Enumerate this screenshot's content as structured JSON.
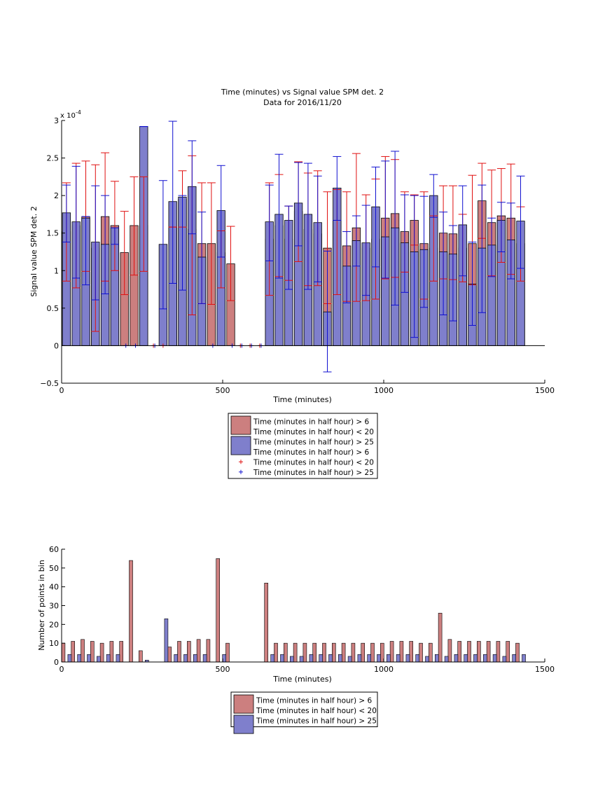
{
  "figure": {
    "title_line1": "Time (minutes) vs Signal value SPM det. 2",
    "title_line2": "Data for 2016/11/20"
  },
  "colors": {
    "red_bar": "#cc7f7f",
    "blue_bar": "#7f7fcc",
    "red_err": "#e01010",
    "blue_err": "#1010d0"
  },
  "chart_data": [
    {
      "type": "bar",
      "xlabel": "Time (minutes)",
      "ylabel": "Signal value SPM det. 2",
      "exponent_label": "x 10",
      "exponent_power": "-4",
      "xlim": [
        0,
        1500
      ],
      "ylim": [
        -0.5,
        3
      ],
      "xticks": [
        "0",
        "500",
        "1000",
        "1500"
      ],
      "yticks": [
        "−0.5",
        "0",
        "0.5",
        "1",
        "1.5",
        "2",
        "2.5",
        "3"
      ],
      "grid": false,
      "legend_position": "below",
      "legend": [
        "Time (minutes in half hour) > 6",
        "Time (minutes in half hour) < 20",
        "Time (minutes in half hour) > 25",
        "Time (minutes in half hour) > 6",
        "Time (minutes in half hour) < 20",
        "Time (minutes in half hour) > 25"
      ],
      "series": [
        {
          "x": [
            15,
            45,
            75,
            105,
            135,
            165,
            195,
            225,
            255,
            285,
            315,
            345,
            375,
            405,
            435,
            465,
            495,
            525,
            555,
            585,
            615,
            645,
            675,
            705,
            735,
            765,
            795,
            825,
            855,
            885,
            915,
            945,
            975,
            1005,
            1035,
            1065,
            1095,
            1125,
            1155,
            1185,
            1215,
            1245,
            1275,
            1305,
            1335,
            1365,
            1395,
            1425
          ],
          "mean": [
            1.52,
            1.6,
            1.72,
            1.3,
            1.72,
            1.6,
            1.24,
            1.6,
            1.6,
            0,
            0,
            1.58,
            1.95,
            1.55,
            1.36,
            1.36,
            1.24,
            1.09,
            0,
            0,
            0,
            1.42,
            1.6,
            1.42,
            1.79,
            1.55,
            1.49,
            1.3,
            1.67,
            1.33,
            1.57,
            1.3,
            1.42,
            1.7,
            1.76,
            1.52,
            1.67,
            1.36,
            1.3,
            1.5,
            1.49,
            1.3,
            1.36,
            1.93,
            1.64,
            1.73,
            1.7,
            1.36
          ],
          "err_low": [
            0.86,
            0.77,
            0.99,
            0.19,
            0.86,
            1.0,
            0.68,
            0.94,
            0.99,
            0,
            0,
            1.58,
            1.58,
            0.41,
            0.56,
            0.55,
            0.77,
            0.6,
            0,
            0,
            0,
            0.67,
            0.92,
            0.87,
            1.12,
            0.8,
            0.8,
            0.56,
            0.68,
            0.59,
            0.59,
            0.6,
            0.62,
            0.89,
            0.91,
            0.98,
            1.34,
            0.62,
            0.86,
            0.89,
            0.88,
            0.85,
            0.81,
            1.43,
            0.93,
            1.11,
            0.95,
            0.86
          ],
          "err_high": [
            2.17,
            2.43,
            2.46,
            2.41,
            2.57,
            2.19,
            1.79,
            2.25,
            2.25,
            0,
            0,
            1.58,
            2.33,
            2.53,
            2.17,
            2.17,
            1.53,
            1.59,
            0,
            0,
            0,
            2.17,
            2.28,
            1.86,
            2.45,
            2.3,
            2.33,
            2.05,
            2.08,
            2.05,
            2.56,
            2.01,
            2.22,
            2.52,
            2.48,
            2.05,
            2.01,
            2.05,
            1.73,
            2.13,
            2.13,
            1.75,
            2.27,
            2.43,
            2.34,
            2.36,
            2.42,
            1.85
          ],
          "color": "#cc7f7f",
          "err_color": "#e01010"
        },
        {
          "x": [
            15,
            45,
            75,
            105,
            135,
            165,
            195,
            225,
            255,
            285,
            315,
            345,
            375,
            405,
            435,
            465,
            495,
            525,
            555,
            585,
            615,
            645,
            675,
            705,
            735,
            765,
            795,
            825,
            855,
            885,
            915,
            945,
            975,
            1005,
            1035,
            1065,
            1095,
            1125,
            1155,
            1185,
            1215,
            1245,
            1275,
            1305,
            1335,
            1365,
            1395,
            1425
          ],
          "mean": [
            1.77,
            1.65,
            1.7,
            1.38,
            1.35,
            1.57,
            0,
            0,
            2.92,
            0,
            1.35,
            1.92,
            1.98,
            2.12,
            1.18,
            0,
            1.8,
            0,
            0,
            0,
            0,
            1.65,
            1.75,
            1.67,
            1.9,
            1.75,
            1.64,
            0.45,
            2.1,
            1.06,
            1.4,
            1.37,
            1.85,
            1.45,
            1.57,
            1.37,
            1.25,
            1.28,
            2.0,
            1.25,
            1.22,
            1.61,
            0.82,
            1.3,
            1.34,
            1.67,
            1.41,
            1.66
          ],
          "err_low": [
            1.38,
            0.9,
            0.81,
            0.61,
            0.69,
            1.35,
            0,
            0,
            2.92,
            0,
            0.49,
            0.83,
            0.74,
            1.49,
            0.56,
            0,
            1.18,
            0,
            0,
            0,
            0,
            1.13,
            0.9,
            0.75,
            1.33,
            0.75,
            0.85,
            -0.35,
            1.67,
            0.57,
            1.06,
            0.67,
            1.05,
            0.9,
            0.54,
            0.71,
            0.11,
            0.51,
            1.71,
            0.41,
            0.33,
            0.93,
            0.27,
            0.44,
            0.92,
            1.25,
            0.89,
            1.03
          ],
          "err_high": [
            2.14,
            2.39,
            1.72,
            2.13,
            2.0,
            1.57,
            0,
            0,
            2.92,
            0,
            2.2,
            2.99,
            2.0,
            2.73,
            1.78,
            0,
            2.4,
            0,
            0,
            0,
            0,
            2.14,
            2.55,
            1.86,
            2.44,
            2.43,
            2.26,
            1.26,
            2.52,
            1.52,
            1.73,
            1.87,
            2.38,
            2.46,
            2.59,
            2.01,
            2.0,
            1.99,
            2.28,
            1.78,
            1.6,
            2.13,
            1.38,
            2.14,
            1.7,
            1.91,
            1.9,
            2.26
          ],
          "color": "#7f7fcc",
          "err_color": "#1010d0"
        }
      ]
    },
    {
      "type": "bar",
      "xlabel": "Time (minutes)",
      "ylabel": "Number of points in bin",
      "xlim": [
        0,
        1500
      ],
      "ylim": [
        0,
        60
      ],
      "xticks": [
        "0",
        "500",
        "1000",
        "1500"
      ],
      "yticks": [
        "0",
        "10",
        "20",
        "30",
        "40",
        "50",
        "60"
      ],
      "grid": false,
      "legend_position": "below",
      "legend": [
        "Time (minutes in half hour) > 6",
        "Time (minutes in half hour) < 20",
        "Time (minutes in half hour) > 25"
      ],
      "series": [
        {
          "x": [
            15,
            45,
            75,
            105,
            135,
            165,
            195,
            225,
            255,
            285,
            315,
            345,
            375,
            405,
            435,
            465,
            495,
            525,
            555,
            585,
            615,
            645,
            675,
            705,
            735,
            765,
            795,
            825,
            855,
            885,
            915,
            945,
            975,
            1005,
            1035,
            1065,
            1095,
            1125,
            1155,
            1185,
            1215,
            1245,
            1275,
            1305,
            1335,
            1365,
            1395,
            1425
          ],
          "values": [
            10,
            11,
            12,
            11,
            10,
            11,
            11,
            54,
            6,
            0,
            0,
            8,
            11,
            11,
            12,
            12,
            55,
            10,
            0,
            0,
            0,
            42,
            10,
            10,
            10,
            10,
            10,
            10,
            10,
            10,
            10,
            10,
            10,
            10,
            11,
            11,
            11,
            10,
            10,
            26,
            12,
            11,
            11,
            11,
            11,
            11,
            11,
            10
          ],
          "color": "#cc7f7f"
        },
        {
          "x": [
            15,
            45,
            75,
            105,
            135,
            165,
            195,
            225,
            255,
            285,
            315,
            345,
            375,
            405,
            435,
            465,
            495,
            525,
            555,
            585,
            615,
            645,
            675,
            705,
            735,
            765,
            795,
            825,
            855,
            885,
            915,
            945,
            975,
            1005,
            1035,
            1065,
            1095,
            1125,
            1155,
            1185,
            1215,
            1245,
            1275,
            1305,
            1335,
            1365,
            1395,
            1425
          ],
          "values": [
            4,
            4,
            4,
            3,
            4,
            4,
            0,
            0,
            1,
            0,
            23,
            4,
            4,
            4,
            4,
            0,
            4,
            0,
            0,
            0,
            0,
            4,
            4,
            3,
            3,
            4,
            4,
            4,
            4,
            3,
            4,
            4,
            4,
            4,
            4,
            4,
            4,
            3,
            4,
            3,
            4,
            4,
            4,
            4,
            4,
            3,
            4,
            4
          ],
          "color": "#7f7fcc"
        }
      ]
    }
  ]
}
